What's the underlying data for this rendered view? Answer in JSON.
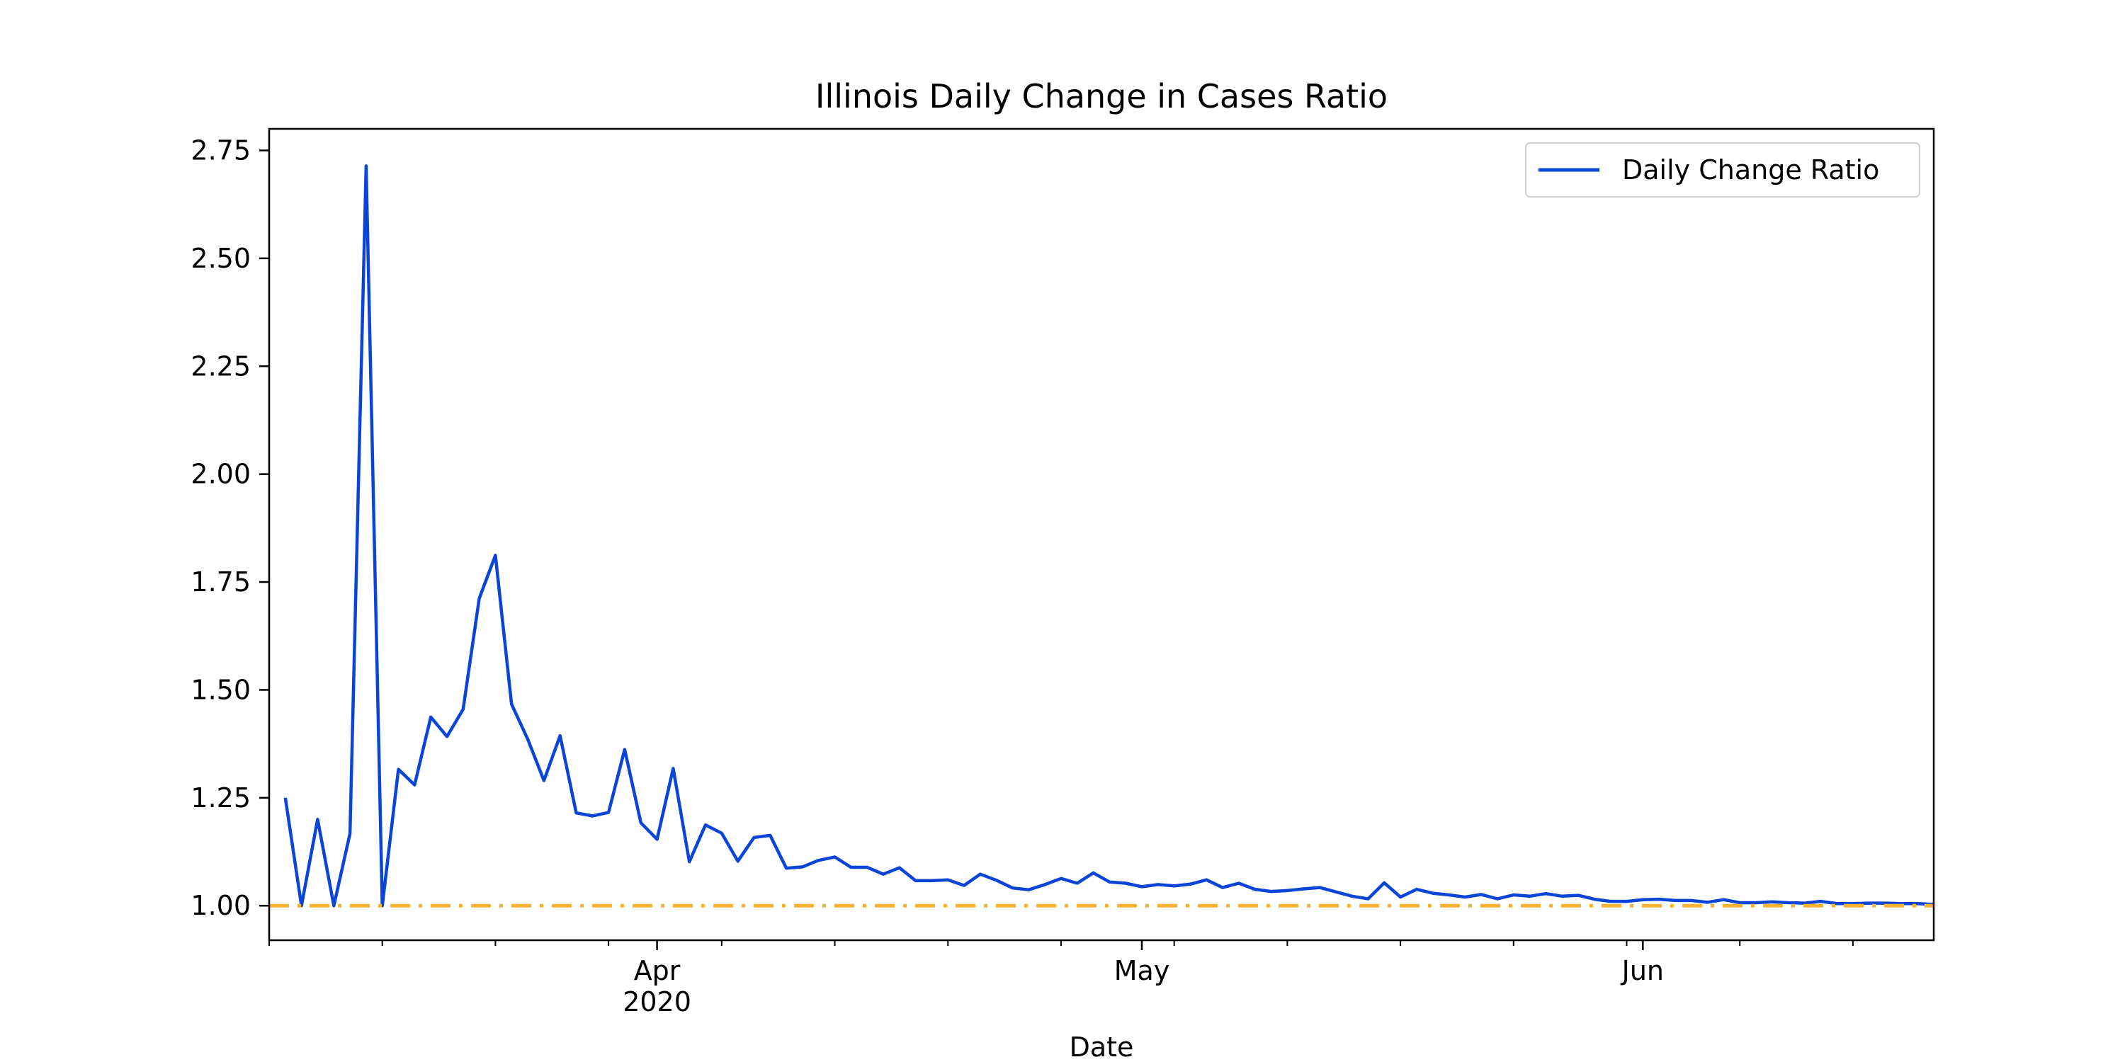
{
  "chart_data": {
    "type": "line",
    "title": "Illinois Daily Change in Cases Ratio",
    "xlabel": "Date",
    "ylabel": "",
    "x_start": "2020-03-09",
    "xlim": [
      "2020-03-08",
      "2020-06-19"
    ],
    "ylim": [
      0.92,
      2.8
    ],
    "yticks": [
      1.0,
      1.25,
      1.5,
      1.75,
      2.0,
      2.25,
      2.5,
      2.75
    ],
    "ytick_labels": [
      "1.00",
      "1.25",
      "1.50",
      "1.75",
      "2.00",
      "2.25",
      "2.50",
      "2.75"
    ],
    "xticks_major": [
      {
        "date": "2020-04-01",
        "label": "Apr",
        "sublabel": "2020"
      },
      {
        "date": "2020-05-01",
        "label": "May",
        "sublabel": ""
      },
      {
        "date": "2020-06-01",
        "label": "Jun",
        "sublabel": ""
      }
    ],
    "xticks_minor": [
      "2020-03-08",
      "2020-03-15",
      "2020-03-22",
      "2020-03-29",
      "2020-04-05",
      "2020-04-12",
      "2020-04-19",
      "2020-04-26",
      "2020-05-03",
      "2020-05-10",
      "2020-05-17",
      "2020-05-24",
      "2020-05-31",
      "2020-06-07",
      "2020-06-14"
    ],
    "legend": {
      "position": "upper right",
      "entries": [
        "Daily Change Ratio"
      ]
    },
    "grid": false,
    "series": [
      {
        "name": "Daily Change Ratio",
        "color": "#0a45d8",
        "style": "solid",
        "values": [
          1.25,
          1.0,
          1.2,
          1.0,
          1.167,
          2.714,
          1.0,
          1.316,
          1.28,
          1.437,
          1.392,
          1.455,
          1.712,
          1.812,
          1.467,
          1.386,
          1.29,
          1.394,
          1.215,
          1.208,
          1.216,
          1.362,
          1.192,
          1.154,
          1.318,
          1.102,
          1.187,
          1.168,
          1.103,
          1.158,
          1.163,
          1.087,
          1.09,
          1.105,
          1.113,
          1.089,
          1.089,
          1.073,
          1.088,
          1.058,
          1.058,
          1.06,
          1.047,
          1.073,
          1.059,
          1.041,
          1.037,
          1.049,
          1.063,
          1.052,
          1.076,
          1.055,
          1.052,
          1.044,
          1.049,
          1.046,
          1.05,
          1.06,
          1.042,
          1.052,
          1.038,
          1.033,
          1.035,
          1.039,
          1.042,
          1.032,
          1.022,
          1.016,
          1.053,
          1.02,
          1.038,
          1.029,
          1.025,
          1.02,
          1.026,
          1.016,
          1.025,
          1.022,
          1.028,
          1.022,
          1.024,
          1.015,
          1.01,
          1.01,
          1.014,
          1.015,
          1.012,
          1.012,
          1.008,
          1.014,
          1.007,
          1.007,
          1.009,
          1.007,
          1.006,
          1.01,
          1.005,
          1.005,
          1.006,
          1.006,
          1.005,
          1.005,
          1.003,
          1.005,
          1.004,
          1.004
        ]
      },
      {
        "name": "",
        "color": "#f8b332",
        "style": "dashdot",
        "values": [
          1.0
        ],
        "kind": "hline"
      }
    ]
  }
}
